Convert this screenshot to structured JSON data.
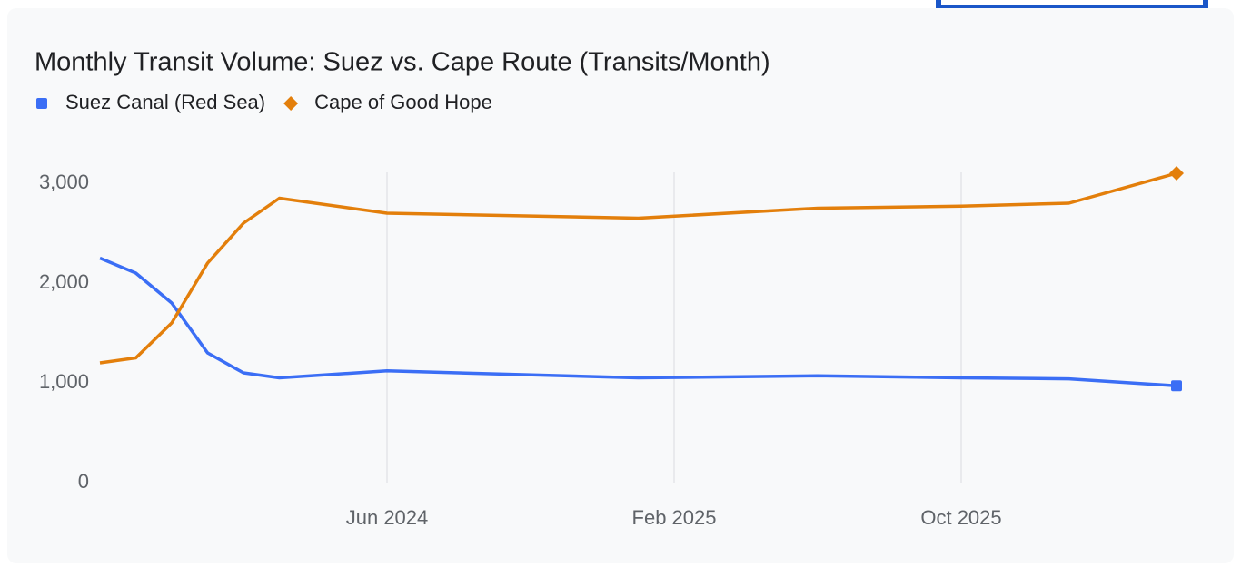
{
  "chart_data": {
    "type": "line",
    "title": "Monthly Transit Volume: Suez vs. Cape Route (Transits/Month)",
    "x": [
      "2023-10",
      "2023-11",
      "2023-12",
      "2024-01",
      "2024-02",
      "2024-03",
      "2024-06",
      "2025-01",
      "2025-06",
      "2025-10",
      "2026-01",
      "2026-04"
    ],
    "series": [
      {
        "name": "Suez Canal (Red Sea)",
        "color": "#3b6ef5",
        "marker": "square",
        "values": [
          2250,
          2100,
          1800,
          1300,
          1100,
          1050,
          1120,
          1050,
          1070,
          1050,
          1040,
          970
        ]
      },
      {
        "name": "Cape of Good Hope",
        "color": "#e37f0b",
        "marker": "diamond",
        "values": [
          1200,
          1250,
          1600,
          2200,
          2600,
          2850,
          2700,
          2650,
          2750,
          2770,
          2800,
          3100
        ]
      }
    ],
    "xlim": [
      "2023-10",
      "2026-04"
    ],
    "xticks": [
      {
        "value": "2024-06",
        "label": "Jun 2024"
      },
      {
        "value": "2025-02",
        "label": "Feb 2025"
      },
      {
        "value": "2025-10",
        "label": "Oct 2025"
      }
    ],
    "ylim": [
      0,
      3100
    ],
    "yticks": [
      0,
      {
        "value": 1000,
        "label": "1,000"
      },
      {
        "value": 2000,
        "label": "2,000"
      },
      {
        "value": 3000,
        "label": "3,000"
      }
    ],
    "grid": "x",
    "legend": "top-left"
  }
}
